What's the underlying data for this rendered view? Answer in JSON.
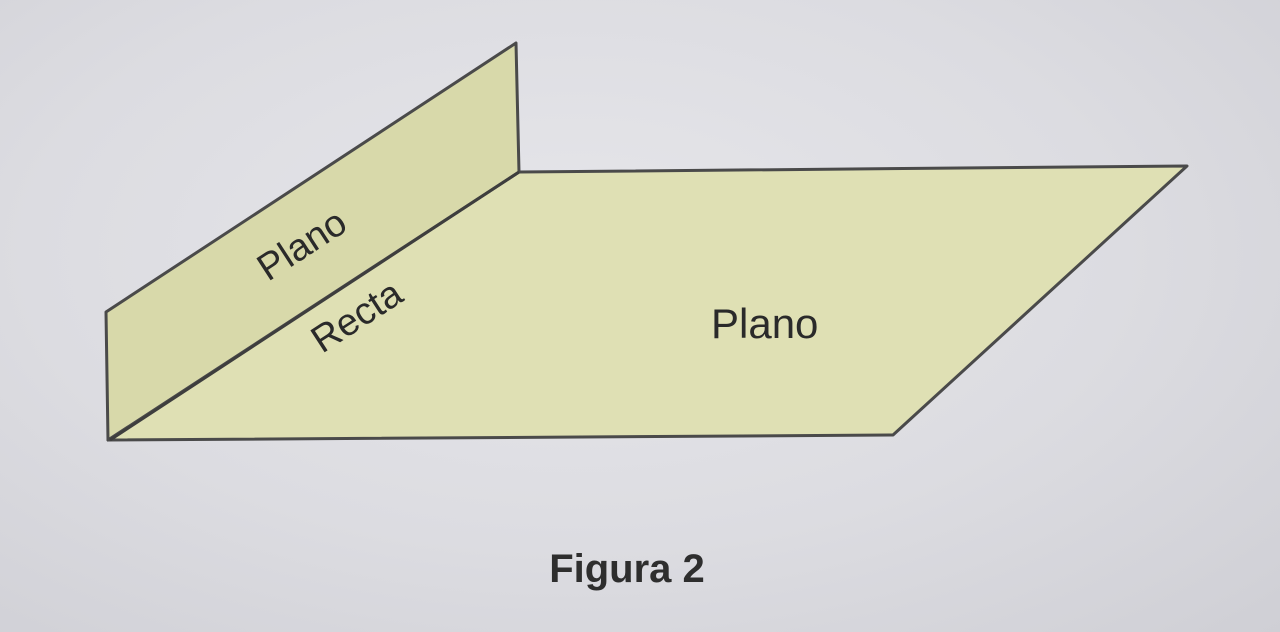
{
  "figure": {
    "caption": "Figura 2",
    "labels": {
      "vertical_plane": "Plano",
      "intersection_line": "Recta",
      "horizontal_plane": "Plano"
    },
    "colors": {
      "plane_fill": "#dfe0b4",
      "plane_fill_front": "#d8d9aa",
      "edge_color": "#4a4a4a",
      "background": "#dcdce1"
    }
  }
}
